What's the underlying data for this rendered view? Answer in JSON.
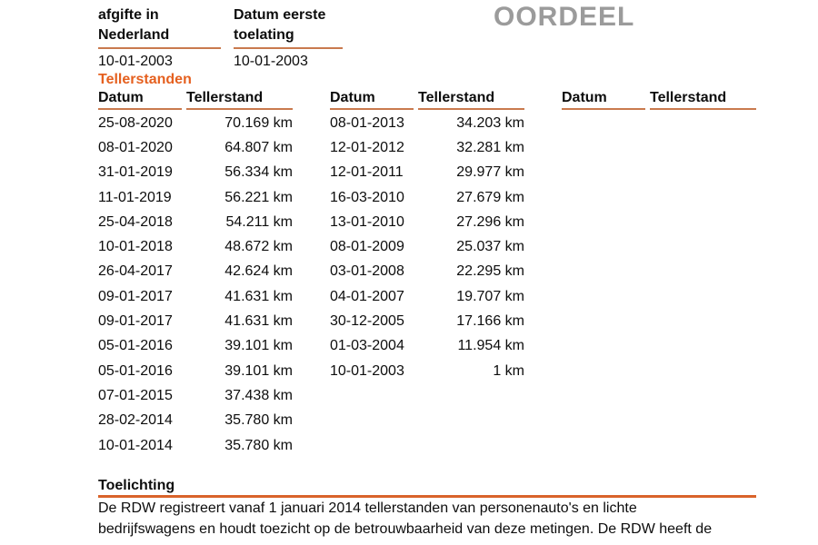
{
  "colors": {
    "accent_orange": "#e5601f",
    "underline_orange": "#c97a4e",
    "rule_orange": "#d9632a",
    "watermark_gray": "#9b9b9b",
    "text_black": "#0d0d0d"
  },
  "header": {
    "watermark": "OORDEEL",
    "fields": [
      {
        "label": "Datum eerste\nafgifte in\nNederland",
        "value": "10-01-2003"
      },
      {
        "label": "Datum eerste\ntoelating",
        "value": "10-01-2003"
      }
    ]
  },
  "tellerstanden": {
    "title": "Tellerstanden",
    "col_datum": "Datum",
    "col_tellerstand": "Tellerstand",
    "groups": [
      {
        "rows": [
          {
            "datum": "25-08-2020",
            "stand": "70.169 km"
          },
          {
            "datum": "08-01-2020",
            "stand": "64.807 km"
          },
          {
            "datum": "31-01-2019",
            "stand": "56.334 km"
          },
          {
            "datum": "11-01-2019",
            "stand": "56.221 km"
          },
          {
            "datum": "25-04-2018",
            "stand": "54.211 km"
          },
          {
            "datum": "10-01-2018",
            "stand": "48.672 km"
          },
          {
            "datum": "26-04-2017",
            "stand": "42.624 km"
          },
          {
            "datum": "09-01-2017",
            "stand": "41.631 km"
          },
          {
            "datum": "09-01-2017",
            "stand": "41.631 km"
          },
          {
            "datum": "05-01-2016",
            "stand": "39.101 km"
          },
          {
            "datum": "05-01-2016",
            "stand": "39.101 km"
          },
          {
            "datum": "07-01-2015",
            "stand": "37.438 km"
          },
          {
            "datum": "28-02-2014",
            "stand": "35.780 km"
          },
          {
            "datum": "10-01-2014",
            "stand": "35.780 km"
          }
        ]
      },
      {
        "rows": [
          {
            "datum": "08-01-2013",
            "stand": "34.203 km"
          },
          {
            "datum": "12-01-2012",
            "stand": "32.281 km"
          },
          {
            "datum": "12-01-2011",
            "stand": "29.977 km"
          },
          {
            "datum": "16-03-2010",
            "stand": "27.679 km"
          },
          {
            "datum": "13-01-2010",
            "stand": "27.296 km"
          },
          {
            "datum": "08-01-2009",
            "stand": "25.037 km"
          },
          {
            "datum": "03-01-2008",
            "stand": "22.295 km"
          },
          {
            "datum": "04-01-2007",
            "stand": "19.707 km"
          },
          {
            "datum": "30-12-2005",
            "stand": "17.166 km"
          },
          {
            "datum": "01-03-2004",
            "stand": "11.954 km"
          },
          {
            "datum": "10-01-2003",
            "stand": "1 km"
          }
        ]
      },
      {
        "rows": []
      }
    ]
  },
  "toelichting": {
    "title": "Toelichting",
    "body": "De RDW registreert vanaf 1 januari 2014 tellerstanden van personenauto's en lichte\nbedrijfswagens en houdt toezicht op de betrouwbaarheid van deze metingen. De RDW heeft de"
  }
}
